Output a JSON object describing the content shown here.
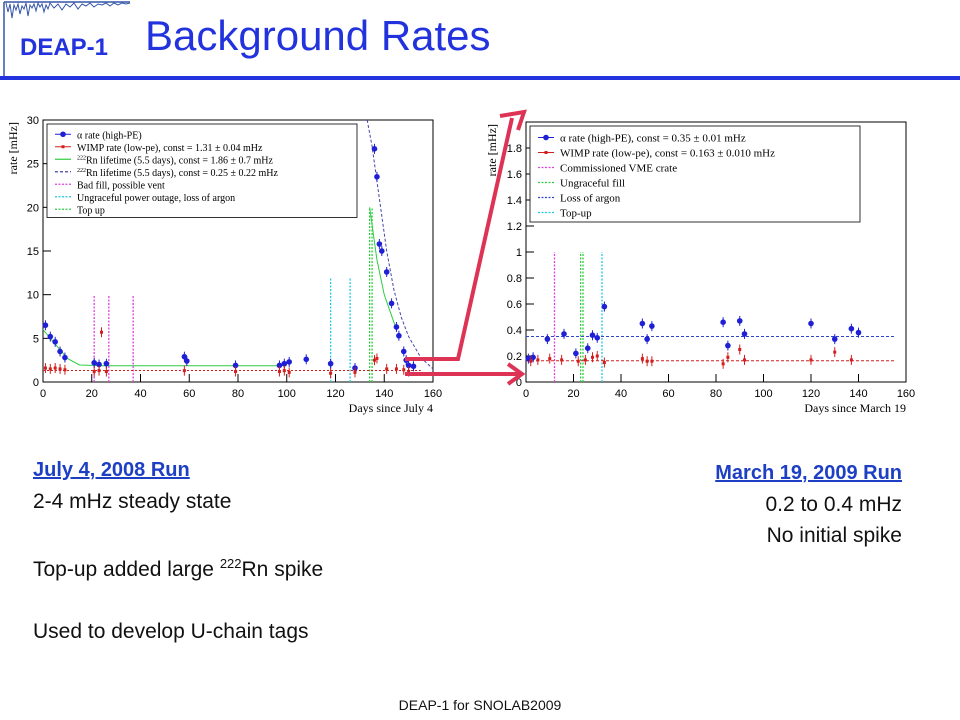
{
  "header": {
    "logo_text": "DEAP-1",
    "title": "Background Rates",
    "accent_color": "#2233dd"
  },
  "chart_data": [
    {
      "type": "scatter",
      "ylabel": "rate [mHz]",
      "xlabel": "Days since July 4",
      "xlim": [
        0,
        160
      ],
      "ylim": [
        0,
        30
      ],
      "xticks": [
        0,
        20,
        40,
        60,
        80,
        100,
        120,
        140,
        160
      ],
      "yticks": [
        0,
        5,
        10,
        15,
        20,
        25,
        30
      ],
      "legend_position": "top-left",
      "legend": [
        {
          "pre": "α rate (high-PE)",
          "sup": "",
          "post": ""
        },
        {
          "pre": "WIMP rate (low-pe), const = 1.31 ± 0.04 mHz",
          "sup": "",
          "post": ""
        },
        {
          "pre": "",
          "sup": "222",
          "post": "Rn lifetime (5.5 days), const = 1.86 ± 0.7 mHz"
        },
        {
          "pre": "",
          "sup": "222",
          "post": "Rn lifetime (5.5 days), const = 0.25 ± 0.22 mHz"
        },
        {
          "pre": "Bad fill, possible vent",
          "sup": "",
          "post": ""
        },
        {
          "pre": "Ungraceful power outage, loss of argon",
          "sup": "",
          "post": ""
        },
        {
          "pre": "Top up",
          "sup": "",
          "post": ""
        }
      ],
      "series": [
        {
          "color": "#1f1fd6",
          "points": [
            [
              1,
              6.5
            ],
            [
              3,
              5.2
            ],
            [
              5,
              4.6
            ],
            [
              7,
              3.5
            ],
            [
              9,
              2.8
            ],
            [
              21,
              2.2
            ],
            [
              23,
              2.0
            ],
            [
              26,
              2.1
            ],
            [
              58,
              2.9
            ],
            [
              59,
              2.4
            ],
            [
              79,
              1.9
            ],
            [
              97,
              1.9
            ],
            [
              99,
              2.1
            ],
            [
              101,
              2.3
            ],
            [
              108,
              2.6
            ],
            [
              118,
              2.1
            ],
            [
              128,
              1.6
            ],
            [
              136,
              26.7
            ],
            [
              137,
              23.5
            ],
            [
              138,
              15.8
            ],
            [
              139,
              15.0
            ],
            [
              141,
              12.6
            ],
            [
              143,
              9.0
            ],
            [
              145,
              6.3
            ],
            [
              146,
              5.3
            ],
            [
              148,
              3.5
            ],
            [
              149,
              2.5
            ],
            [
              150,
              1.9
            ],
            [
              152,
              1.8
            ]
          ]
        },
        {
          "color": "#d41e1e",
          "points": [
            [
              1,
              1.6
            ],
            [
              3,
              1.5
            ],
            [
              5,
              1.6
            ],
            [
              7,
              1.5
            ],
            [
              9,
              1.4
            ],
            [
              21,
              1.2
            ],
            [
              23,
              1.3
            ],
            [
              24,
              5.7
            ],
            [
              26,
              1.2
            ],
            [
              58,
              1.3
            ],
            [
              79,
              1.2
            ],
            [
              97,
              1.2
            ],
            [
              99,
              1.3
            ],
            [
              101,
              1.1
            ],
            [
              118,
              1.0
            ],
            [
              128,
              1.1
            ],
            [
              136,
              2.5
            ],
            [
              137,
              2.7
            ],
            [
              141,
              1.5
            ],
            [
              145,
              1.5
            ],
            [
              148,
              1.4
            ],
            [
              150,
              1.2
            ]
          ]
        }
      ],
      "fit_lines": [
        {
          "color": "#2ecc40",
          "dash": "",
          "points": [
            [
              0,
              6
            ],
            [
              10,
              2.7
            ],
            [
              15,
              1.95
            ],
            [
              25,
              1.86
            ],
            [
              100,
              1.86
            ]
          ]
        },
        {
          "color": "#d41e1e",
          "dash": "2,2",
          "points": [
            [
              0,
              1.31
            ],
            [
              155,
              1.31
            ]
          ]
        },
        {
          "color": "#4444aa",
          "dash": "3,2",
          "points": [
            [
              133,
              30
            ],
            [
              135,
              27
            ],
            [
              138,
              21
            ],
            [
              141,
              15
            ],
            [
              144,
              10.5
            ],
            [
              147,
              7.4
            ],
            [
              150,
              5.2
            ],
            [
              155,
              2.8
            ],
            [
              160,
              1.5
            ]
          ]
        },
        {
          "color": "#2ecc40",
          "dash": "",
          "points": [
            [
              134,
              20
            ],
            [
              137,
              14
            ],
            [
              140,
              10
            ],
            [
              145,
              6
            ]
          ]
        }
      ],
      "vlines": [
        {
          "x": 21,
          "top": 10,
          "color": "#e040e0"
        },
        {
          "x": 27,
          "top": 10,
          "color": "#e040e0"
        },
        {
          "x": 37,
          "top": 10,
          "color": "#e040e0"
        },
        {
          "x": 118,
          "top": 12,
          "color": "#20c8e0"
        },
        {
          "x": 126,
          "top": 12,
          "color": "#20c8e0"
        },
        {
          "x": 134,
          "top": 20,
          "color": "#2ecc40"
        },
        {
          "x": 135,
          "top": 20,
          "color": "#2ecc40"
        }
      ]
    },
    {
      "type": "scatter",
      "ylabel": "rate [mHz]",
      "xlabel": "Days since March 19",
      "xlim": [
        0,
        160
      ],
      "ylim": [
        0,
        2
      ],
      "xticks": [
        0,
        20,
        40,
        60,
        80,
        100,
        120,
        140,
        160
      ],
      "yticks": [
        0,
        0.2,
        0.4,
        0.6,
        0.8,
        1,
        1.2,
        1.4,
        1.6,
        1.8
      ],
      "legend_position": "top-left",
      "legend": [
        {
          "pre": "α rate (high-PE), const = 0.35 ± 0.01 mHz",
          "sup": "",
          "post": ""
        },
        {
          "pre": "WIMP rate (low-pe), const = 0.163 ± 0.010 mHz",
          "sup": "",
          "post": ""
        },
        {
          "pre": "Commissioned VME crate",
          "sup": "",
          "post": ""
        },
        {
          "pre": "Ungraceful fill",
          "sup": "",
          "post": ""
        },
        {
          "pre": "Loss of argon",
          "sup": "",
          "post": ""
        },
        {
          "pre": "Top-up",
          "sup": "",
          "post": ""
        }
      ],
      "series": [
        {
          "color": "#1f1fd6",
          "points": [
            [
              1,
              0.18
            ],
            [
              3,
              0.19
            ],
            [
              9,
              0.33
            ],
            [
              16,
              0.37
            ],
            [
              21,
              0.22
            ],
            [
              26,
              0.26
            ],
            [
              28,
              0.36
            ],
            [
              30,
              0.34
            ],
            [
              33,
              0.58
            ],
            [
              49,
              0.45
            ],
            [
              51,
              0.33
            ],
            [
              53,
              0.43
            ],
            [
              83,
              0.46
            ],
            [
              85,
              0.28
            ],
            [
              90,
              0.47
            ],
            [
              92,
              0.37
            ],
            [
              120,
              0.45
            ],
            [
              130,
              0.33
            ],
            [
              137,
              0.41
            ],
            [
              140,
              0.38
            ]
          ]
        },
        {
          "color": "#d41e1e",
          "points": [
            [
              2,
              0.16
            ],
            [
              5,
              0.17
            ],
            [
              10,
              0.18
            ],
            [
              15,
              0.17
            ],
            [
              22,
              0.16
            ],
            [
              25,
              0.17
            ],
            [
              28,
              0.19
            ],
            [
              30,
              0.2
            ],
            [
              33,
              0.15
            ],
            [
              49,
              0.18
            ],
            [
              51,
              0.16
            ],
            [
              53,
              0.16
            ],
            [
              83,
              0.14
            ],
            [
              85,
              0.19
            ],
            [
              90,
              0.25
            ],
            [
              92,
              0.17
            ],
            [
              120,
              0.17
            ],
            [
              130,
              0.23
            ],
            [
              137,
              0.17
            ]
          ]
        }
      ],
      "fit_lines": [
        {
          "color": "#3344cc",
          "dash": "3,2",
          "points": [
            [
              0,
              0.35
            ],
            [
              155,
              0.35
            ]
          ]
        },
        {
          "color": "#d41e1e",
          "dash": "3,2",
          "points": [
            [
              0,
              0.163
            ],
            [
              155,
              0.163
            ]
          ]
        }
      ],
      "vlines": [
        {
          "x": 12,
          "top": 1.0,
          "color": "#e040e0"
        },
        {
          "x": 23,
          "top": 1.0,
          "color": "#2ecc40"
        },
        {
          "x": 24,
          "top": 1.0,
          "color": "#2ecc40"
        },
        {
          "x": 32,
          "top": 1.0,
          "color": "#20c8e0"
        }
      ]
    }
  ],
  "notes_left": {
    "heading": "July 4, 2008 Run",
    "line1": "2-4 mHz steady state",
    "line2_pre": "Top-up added large ",
    "line2_sup": "222",
    "line2_post": "Rn spike",
    "line3": "Used to develop U-chain tags"
  },
  "notes_right": {
    "heading": "March 19, 2009 Run",
    "line1": "0.2 to 0.4 mHz",
    "line2": "No initial spike"
  },
  "footer": "DEAP-1 for SNOLAB2009"
}
